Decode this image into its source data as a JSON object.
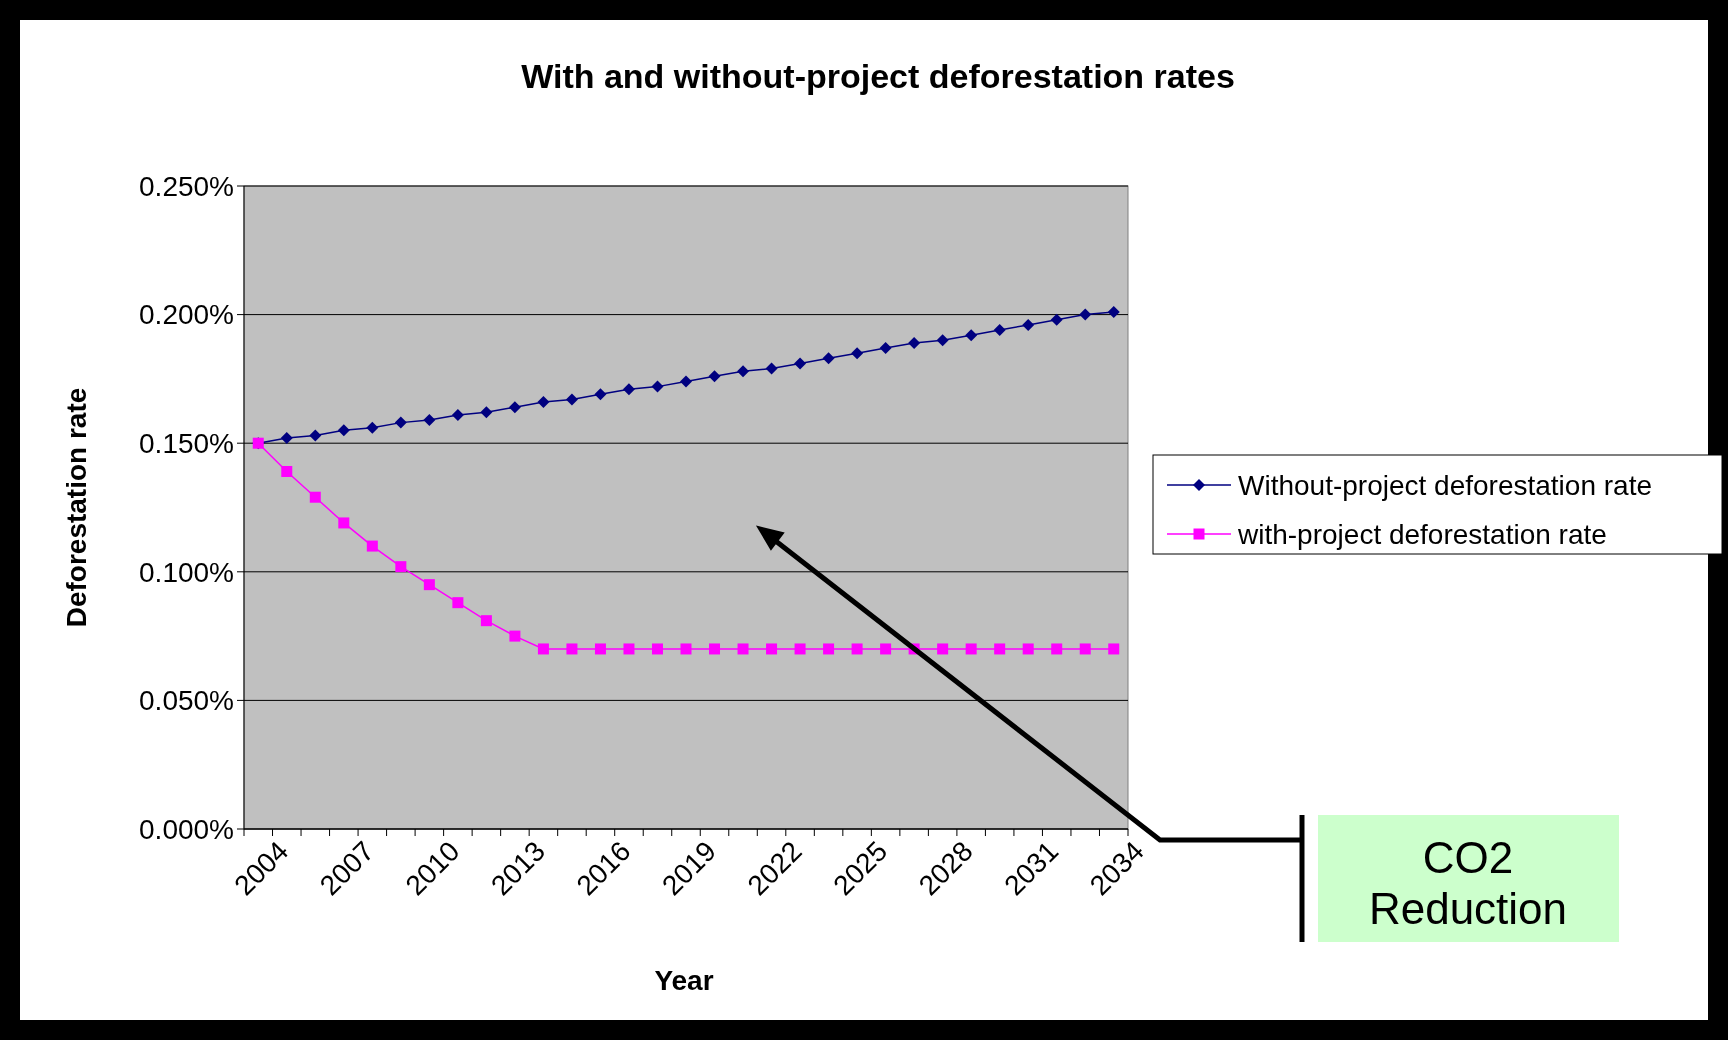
{
  "chart_data": {
    "type": "line",
    "title": "With and without-project deforestation rates",
    "xlabel": "Year",
    "ylabel": "Deforestation rate",
    "categories": [
      "2004",
      null,
      null,
      "2007",
      null,
      null,
      "2010",
      null,
      null,
      "2013",
      null,
      null,
      "2016",
      null,
      null,
      "2019",
      null,
      null,
      "2022",
      null,
      null,
      "2025",
      null,
      null,
      "2028",
      null,
      null,
      "2031",
      null,
      null,
      "2034"
    ],
    "series": [
      {
        "name": "Without-project deforestation rate",
        "color": "#000080",
        "marker": "diamond",
        "values": [
          0.15,
          0.152,
          0.153,
          0.155,
          0.156,
          0.158,
          0.159,
          0.161,
          0.162,
          0.164,
          0.166,
          0.167,
          0.169,
          0.171,
          0.172,
          0.174,
          0.176,
          0.178,
          0.179,
          0.181,
          0.183,
          0.185,
          0.187,
          0.189,
          0.19,
          0.192,
          0.194,
          0.196,
          0.198,
          0.2,
          0.201
        ]
      },
      {
        "name": "with-project deforestation rate",
        "color": "#ff00ff",
        "marker": "square",
        "values": [
          0.15,
          0.139,
          0.129,
          0.119,
          0.11,
          0.102,
          0.095,
          0.088,
          0.081,
          0.075,
          0.07,
          0.07,
          0.07,
          0.07,
          0.07,
          0.07,
          0.07,
          0.07,
          0.07,
          0.07,
          0.07,
          0.07,
          0.07,
          0.07,
          0.07,
          0.07,
          0.07,
          0.07,
          0.07,
          0.07,
          0.07
        ]
      }
    ],
    "ylim": [
      0,
      0.25
    ],
    "yticks": [
      {
        "value": 0,
        "label": "0.000%"
      },
      {
        "value": 0.05,
        "label": "0.050%"
      },
      {
        "value": 0.1,
        "label": "0.100%"
      },
      {
        "value": 0.15,
        "label": "0.150%"
      },
      {
        "value": 0.2,
        "label": "0.200%"
      },
      {
        "value": 0.25,
        "label": "0.250%"
      }
    ],
    "grid": "y",
    "legend": "right",
    "annotations": [
      "CO2 Reduction"
    ]
  }
}
